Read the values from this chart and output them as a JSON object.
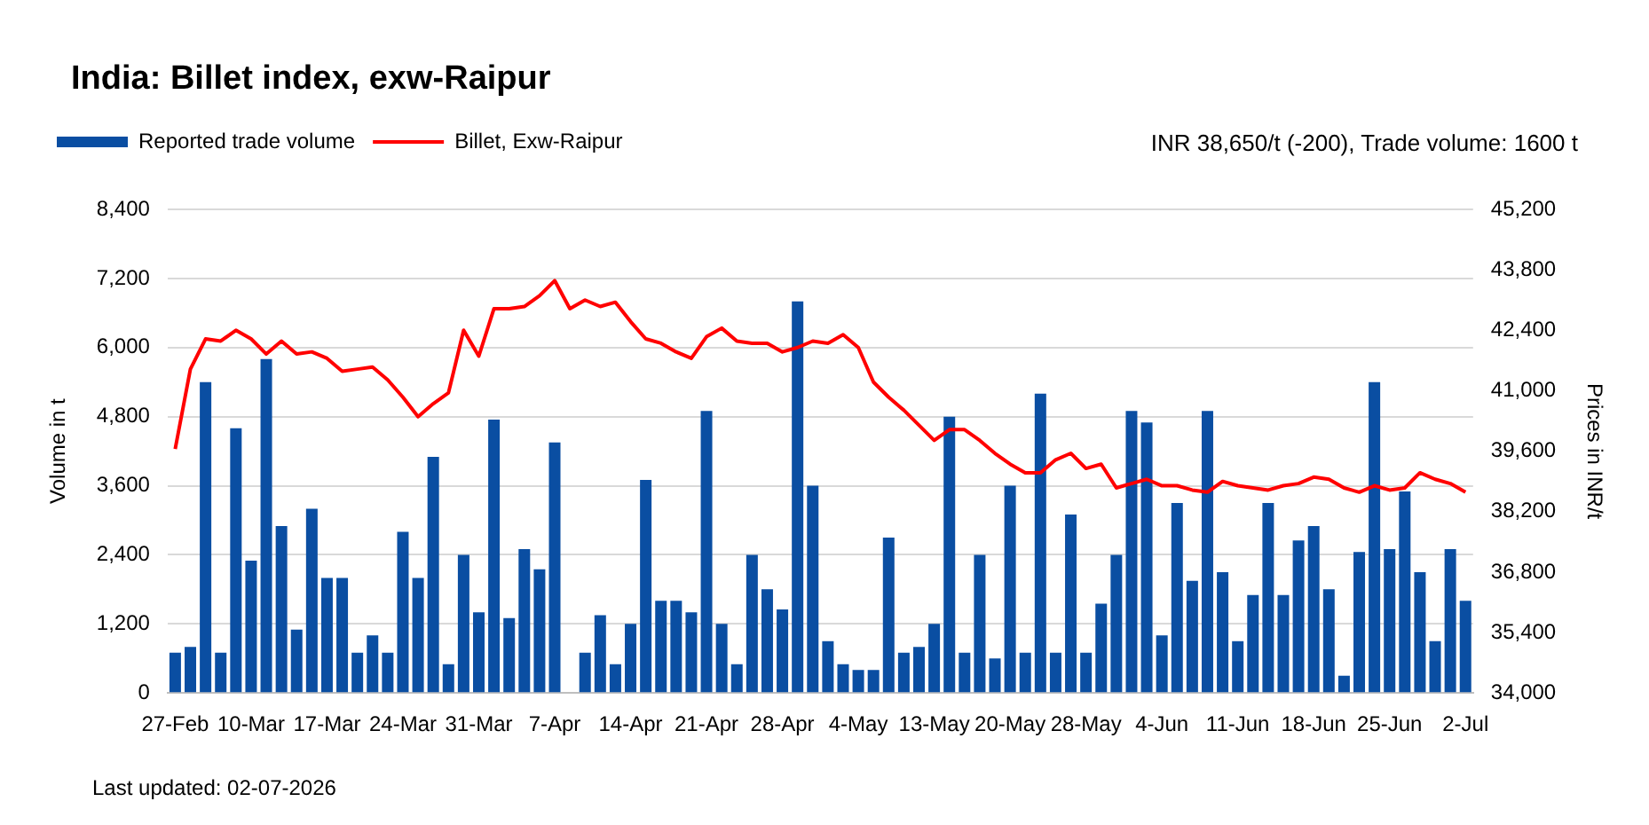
{
  "chart_data": {
    "type": "bar",
    "title": "India: Billet index, exw-Raipur",
    "ylabel": "Volume in t",
    "y2label": "Prices in INR/t",
    "annotations": [
      "INR 38,650/t (-200), Trade volume: 1600 t",
      "Last updated: 02-07-2026"
    ],
    "categories": [
      "27-Feb",
      null,
      null,
      null,
      null,
      "10-Mar",
      null,
      null,
      null,
      null,
      "17-Mar",
      null,
      null,
      null,
      null,
      "24-Mar",
      null,
      null,
      null,
      null,
      "31-Mar",
      null,
      null,
      null,
      null,
      "7-Apr",
      null,
      null,
      null,
      null,
      "14-Apr",
      null,
      null,
      null,
      null,
      "21-Apr",
      null,
      null,
      null,
      null,
      "28-Apr",
      null,
      null,
      null,
      null,
      "4-May",
      null,
      null,
      null,
      null,
      "13-May",
      null,
      null,
      null,
      null,
      "20-May",
      null,
      null,
      null,
      null,
      "28-May",
      null,
      null,
      null,
      null,
      "4-Jun",
      null,
      null,
      null,
      null,
      "11-Jun",
      null,
      null,
      null,
      null,
      "18-Jun",
      null,
      null,
      null,
      null,
      "25-Jun",
      null,
      null,
      null,
      null,
      "2-Jul"
    ],
    "series": [
      {
        "name": "Reported trade volume",
        "type": "bar",
        "axis": "y",
        "color": "#0a4ea2",
        "values": [
          700,
          800,
          5400,
          700,
          4600,
          2300,
          5800,
          2900,
          1100,
          3200,
          2000,
          2000,
          700,
          1000,
          700,
          2800,
          2000,
          4100,
          500,
          2400,
          1400,
          4750,
          1300,
          2500,
          2150,
          4350,
          0,
          700,
          1350,
          500,
          1200,
          3700,
          1600,
          1600,
          1400,
          4900,
          1200,
          500,
          2400,
          1800,
          1450,
          6800,
          3600,
          900,
          500,
          400,
          400,
          2700,
          700,
          800,
          1200,
          4800,
          700,
          2400,
          600,
          3600,
          700,
          5200,
          700,
          3100,
          700,
          1550,
          2400,
          4900,
          4700,
          1000,
          3300,
          1950,
          4900,
          2100,
          900,
          1700,
          3300,
          1700,
          2650,
          2900,
          1800,
          300,
          2450,
          5400,
          2500,
          3500,
          2100,
          900,
          2500,
          1600
        ]
      },
      {
        "name": "Billet, Exw-Raipur",
        "type": "line",
        "axis": "y2",
        "color": "#ff0000",
        "values": [
          39650,
          41500,
          42200,
          42150,
          42400,
          42200,
          41850,
          42150,
          41850,
          41900,
          41750,
          41450,
          41500,
          41550,
          41250,
          40850,
          40400,
          40700,
          40950,
          42400,
          41800,
          42900,
          42900,
          42950,
          43200,
          43550,
          42900,
          43100,
          42950,
          43050,
          42600,
          42200,
          42100,
          41900,
          41750,
          42250,
          42450,
          42150,
          42100,
          42100,
          41900,
          42000,
          42150,
          42100,
          42300,
          42000,
          41200,
          40850,
          40550,
          40200,
          39850,
          40100,
          40100,
          39850,
          39550,
          39300,
          39100,
          39100,
          39400,
          39550,
          39200,
          39300,
          38750,
          38850,
          38950,
          38800,
          38800,
          38700,
          38650,
          38900,
          38800,
          38750,
          38700,
          38800,
          38850,
          39000,
          38950,
          38750,
          38650,
          38800,
          38700,
          38750,
          39100,
          38950,
          38850,
          38650
        ]
      }
    ],
    "ylim": [
      0,
      8400
    ],
    "yticks": [
      0,
      {
        "value": 1200,
        "label": "1,200"
      },
      {
        "value": 2400,
        "label": "2,400"
      },
      {
        "value": 3600,
        "label": "3,600"
      },
      {
        "value": 4800,
        "label": "4,800"
      },
      {
        "value": 6000,
        "label": "6,000"
      },
      {
        "value": 7200,
        "label": "7,200"
      },
      {
        "value": 8400,
        "label": "8,400"
      }
    ],
    "y2lim": [
      34000,
      45200
    ],
    "y2ticks": [
      {
        "value": 34000,
        "label": "34,000"
      },
      {
        "value": 35400,
        "label": "35,400"
      },
      {
        "value": 36800,
        "label": "36,800"
      },
      {
        "value": 38200,
        "label": "38,200"
      },
      {
        "value": 39600,
        "label": "39,600"
      },
      {
        "value": 41000,
        "label": "41,000"
      },
      {
        "value": 42400,
        "label": "42,400"
      },
      {
        "value": 43800,
        "label": "43,800"
      },
      {
        "value": 45200,
        "label": "45,200"
      }
    ],
    "grid": "y",
    "legend": "top left",
    "marker": "none",
    "line_style": "solid"
  }
}
